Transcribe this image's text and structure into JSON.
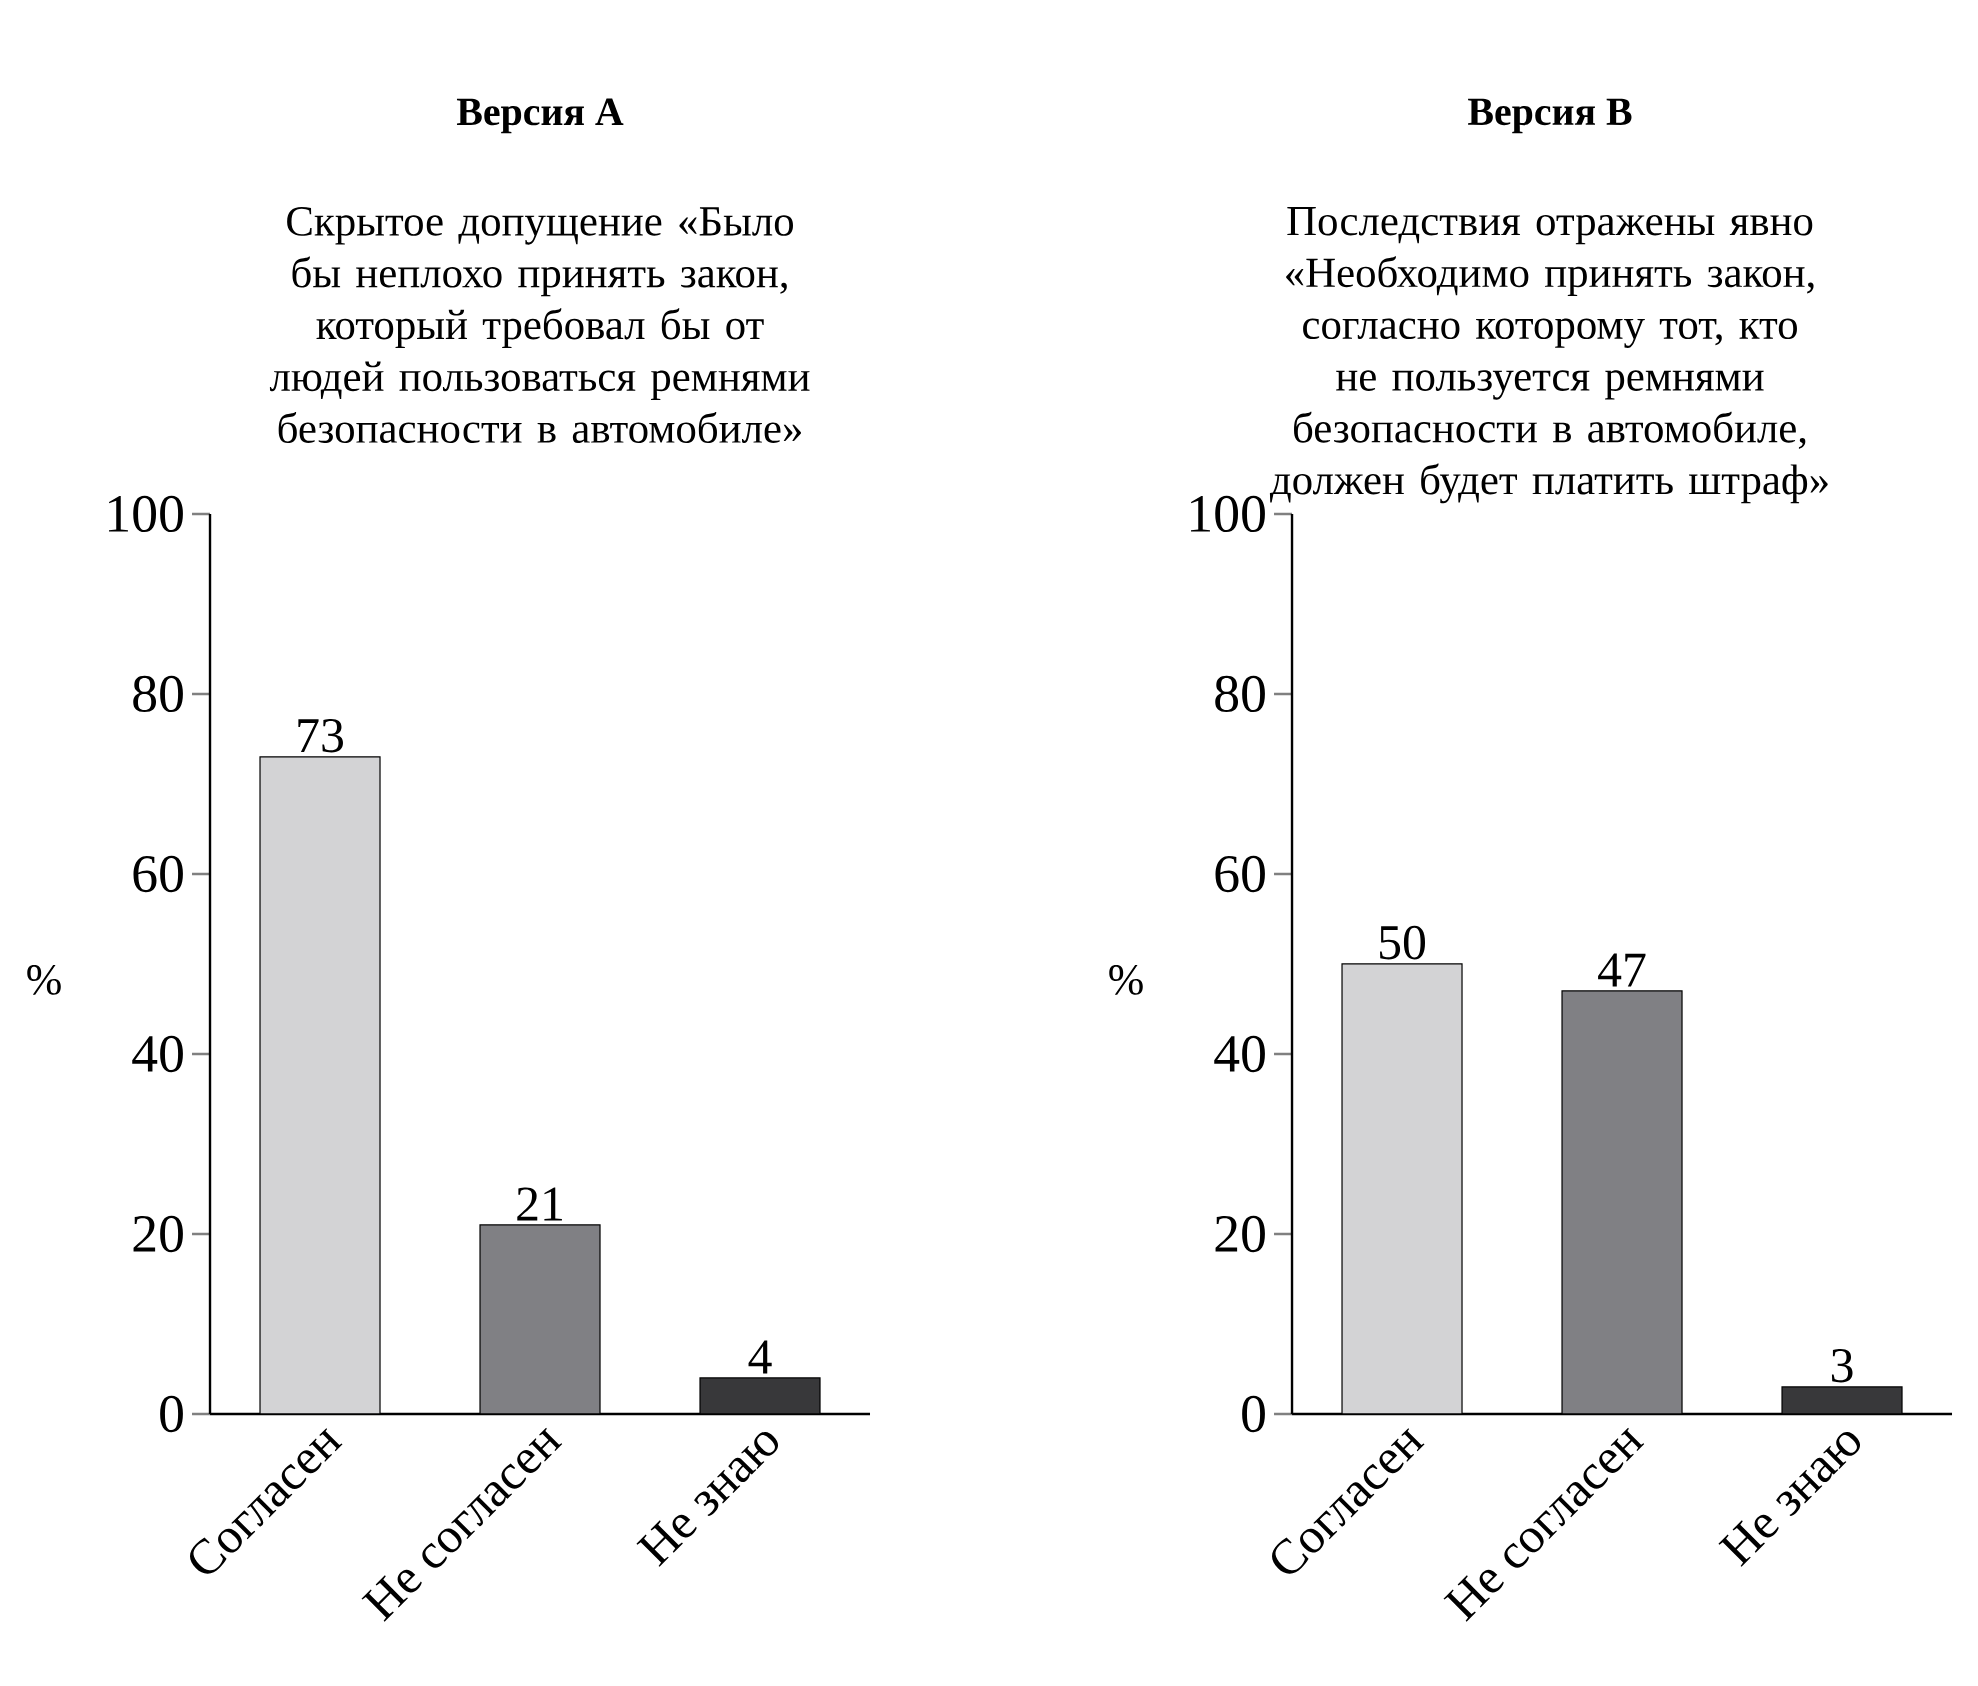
{
  "chart_data": [
    {
      "type": "bar",
      "title": "Версия А",
      "subtitle": "Скрытое допущение «Было бы неплохо принять закон, который требовал бы от людей пользоваться ремнями безопасности в автомобиле»",
      "ylabel": "%",
      "categories": [
        "Согласен",
        "Не согласен",
        "Не знаю"
      ],
      "values": [
        73,
        21,
        4
      ],
      "colors": [
        "#d3d3d5",
        "#808084",
        "#38383a"
      ],
      "ylim": [
        0,
        100
      ],
      "yticks": [
        0,
        20,
        40,
        60,
        80,
        100
      ],
      "data_labels": true,
      "grid": false
    },
    {
      "type": "bar",
      "title": "Версия В",
      "subtitle": "Последствия отражены явно «Необходимо принять закон, согласно которому тот, кто не пользуется ремнями безопасности в автомобиле, должен будет платить штраф»",
      "ylabel": "%",
      "categories": [
        "Согласен",
        "Не согласен",
        "Не знаю"
      ],
      "values": [
        50,
        47,
        3
      ],
      "colors": [
        "#d3d3d5",
        "#808084",
        "#38383a"
      ],
      "ylim": [
        0,
        100
      ],
      "yticks": [
        0,
        20,
        40,
        60,
        80,
        100
      ],
      "data_labels": true,
      "grid": false
    }
  ]
}
